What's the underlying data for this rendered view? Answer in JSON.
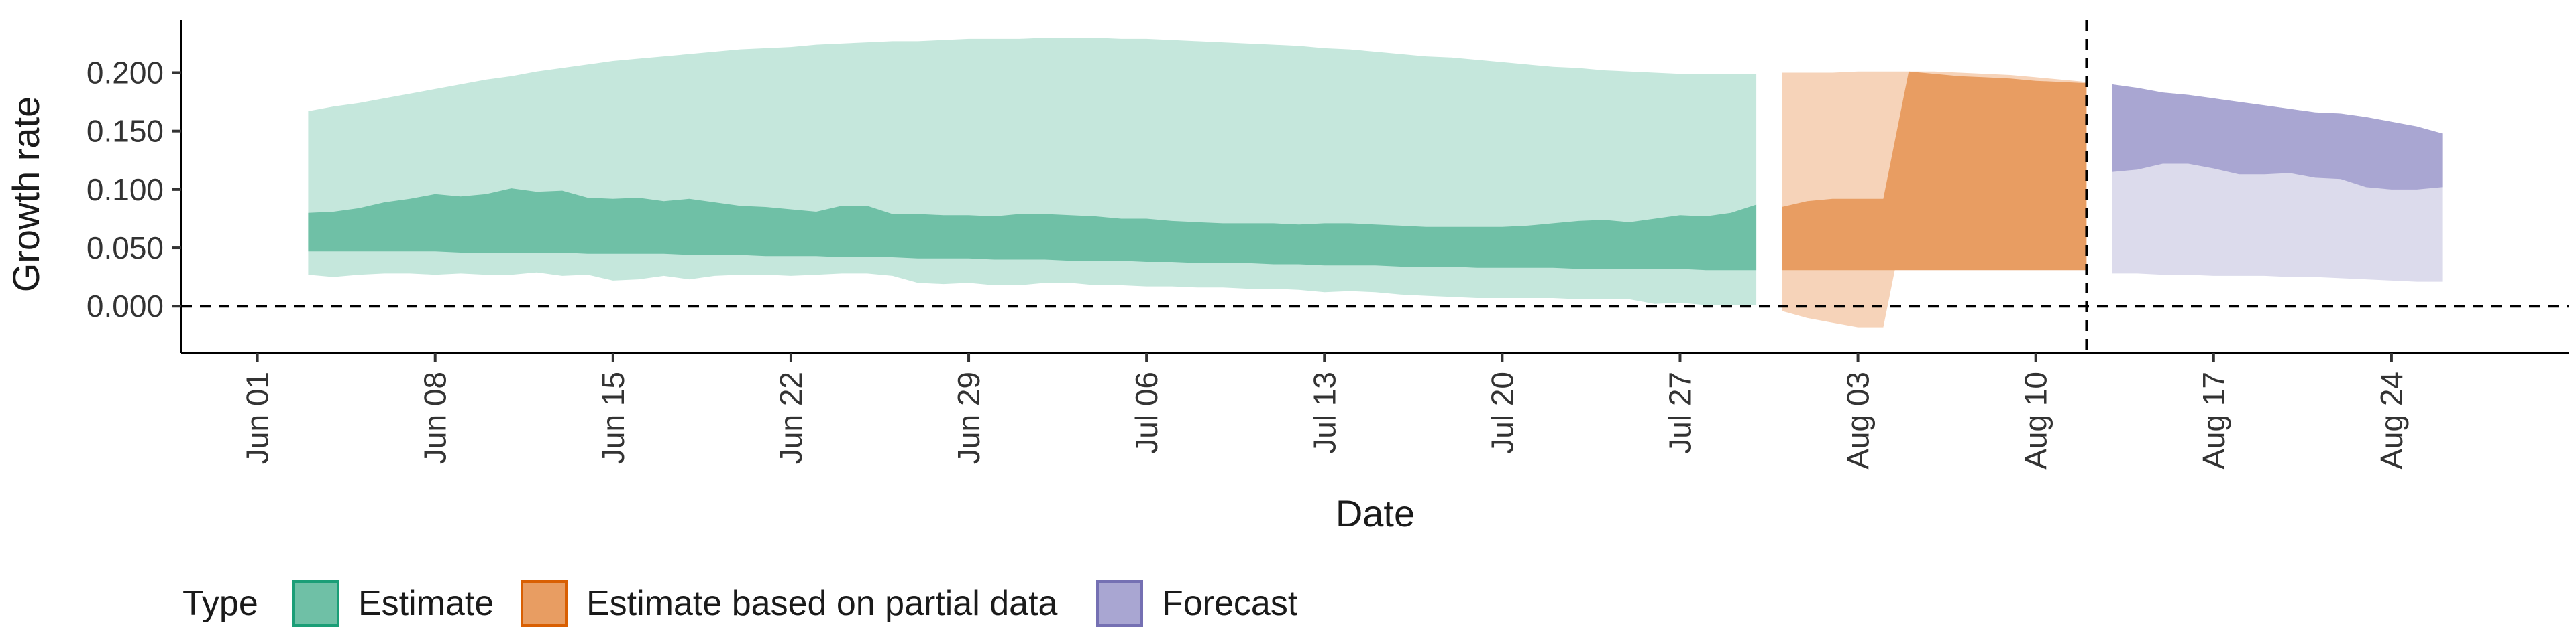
{
  "chart_data": {
    "type": "area",
    "title": "",
    "xlabel": "Date",
    "ylabel": "Growth rate",
    "x_range": [
      "2025-05-29",
      "2025-08-31"
    ],
    "ylim": [
      -0.04,
      0.245
    ],
    "x_ticks": [
      {
        "date": "2025-06-01",
        "label": "Jun 01"
      },
      {
        "date": "2025-06-08",
        "label": "Jun 08"
      },
      {
        "date": "2025-06-15",
        "label": "Jun 15"
      },
      {
        "date": "2025-06-22",
        "label": "Jun 22"
      },
      {
        "date": "2025-06-29",
        "label": "Jun 29"
      },
      {
        "date": "2025-07-06",
        "label": "Jul 06"
      },
      {
        "date": "2025-07-13",
        "label": "Jul 13"
      },
      {
        "date": "2025-07-20",
        "label": "Jul 20"
      },
      {
        "date": "2025-07-27",
        "label": "Jul 27"
      },
      {
        "date": "2025-08-03",
        "label": "Aug 03"
      },
      {
        "date": "2025-08-10",
        "label": "Aug 10"
      },
      {
        "date": "2025-08-17",
        "label": "Aug 17"
      },
      {
        "date": "2025-08-24",
        "label": "Aug 24"
      }
    ],
    "y_ticks": [
      {
        "value": 0.0,
        "label": "0.000"
      },
      {
        "value": 0.05,
        "label": "0.050"
      },
      {
        "value": 0.1,
        "label": "0.100"
      },
      {
        "value": 0.15,
        "label": "0.150"
      },
      {
        "value": 0.2,
        "label": "0.200"
      }
    ],
    "grid": false,
    "reference_lines": [
      {
        "axis": "y",
        "value": 0.0,
        "style": "dashed"
      },
      {
        "axis": "x",
        "value": "2025-08-12",
        "style": "dashed"
      }
    ],
    "legend": {
      "title": "Type",
      "position": "bottom-left",
      "entries": [
        {
          "label": "Estimate",
          "fill": "#6fc0a6",
          "stroke": "#1b9e77"
        },
        {
          "label": "Estimate based on partial data",
          "fill": "#e89d62",
          "stroke": "#d95f02"
        },
        {
          "label": "Forecast",
          "fill": "#a9a6d2",
          "stroke": "#7570b3"
        }
      ]
    },
    "series": [
      {
        "name": "Estimate",
        "color_outer": "#c5e7dc",
        "color_inner": "#6fc0a6",
        "x": [
          "2025-06-03",
          "2025-06-04",
          "2025-06-05",
          "2025-06-06",
          "2025-06-07",
          "2025-06-08",
          "2025-06-09",
          "2025-06-10",
          "2025-06-11",
          "2025-06-12",
          "2025-06-13",
          "2025-06-14",
          "2025-06-15",
          "2025-06-16",
          "2025-06-17",
          "2025-06-18",
          "2025-06-19",
          "2025-06-20",
          "2025-06-21",
          "2025-06-22",
          "2025-06-23",
          "2025-06-24",
          "2025-06-25",
          "2025-06-26",
          "2025-06-27",
          "2025-06-28",
          "2025-06-29",
          "2025-06-30",
          "2025-07-01",
          "2025-07-02",
          "2025-07-03",
          "2025-07-04",
          "2025-07-05",
          "2025-07-06",
          "2025-07-07",
          "2025-07-08",
          "2025-07-09",
          "2025-07-10",
          "2025-07-11",
          "2025-07-12",
          "2025-07-13",
          "2025-07-14",
          "2025-07-15",
          "2025-07-16",
          "2025-07-17",
          "2025-07-18",
          "2025-07-19",
          "2025-07-20",
          "2025-07-21",
          "2025-07-22",
          "2025-07-23",
          "2025-07-24",
          "2025-07-25",
          "2025-07-26",
          "2025-07-27",
          "2025-07-28",
          "2025-07-29",
          "2025-07-30"
        ],
        "outer_upper": [
          0.167,
          0.171,
          0.174,
          0.178,
          0.182,
          0.186,
          0.19,
          0.194,
          0.197,
          0.201,
          0.204,
          0.207,
          0.21,
          0.212,
          0.214,
          0.216,
          0.218,
          0.22,
          0.221,
          0.222,
          0.224,
          0.225,
          0.226,
          0.227,
          0.227,
          0.228,
          0.229,
          0.229,
          0.229,
          0.23,
          0.23,
          0.23,
          0.229,
          0.229,
          0.228,
          0.227,
          0.226,
          0.225,
          0.224,
          0.223,
          0.221,
          0.22,
          0.218,
          0.216,
          0.214,
          0.213,
          0.211,
          0.209,
          0.207,
          0.205,
          0.204,
          0.202,
          0.201,
          0.2,
          0.199,
          0.199,
          0.199,
          0.199
        ],
        "inner_upper": [
          0.08,
          0.081,
          0.084,
          0.089,
          0.092,
          0.096,
          0.094,
          0.096,
          0.101,
          0.098,
          0.099,
          0.093,
          0.092,
          0.093,
          0.09,
          0.092,
          0.089,
          0.086,
          0.085,
          0.083,
          0.081,
          0.086,
          0.086,
          0.079,
          0.079,
          0.078,
          0.078,
          0.077,
          0.079,
          0.079,
          0.078,
          0.077,
          0.075,
          0.075,
          0.073,
          0.072,
          0.071,
          0.071,
          0.071,
          0.07,
          0.071,
          0.071,
          0.07,
          0.069,
          0.068,
          0.068,
          0.068,
          0.068,
          0.069,
          0.071,
          0.073,
          0.074,
          0.072,
          0.075,
          0.078,
          0.077,
          0.08,
          0.087
        ],
        "inner_lower": [
          0.047,
          0.047,
          0.047,
          0.047,
          0.047,
          0.047,
          0.046,
          0.046,
          0.046,
          0.046,
          0.046,
          0.045,
          0.045,
          0.045,
          0.045,
          0.044,
          0.044,
          0.044,
          0.043,
          0.043,
          0.043,
          0.042,
          0.042,
          0.042,
          0.041,
          0.041,
          0.041,
          0.04,
          0.04,
          0.04,
          0.039,
          0.039,
          0.039,
          0.038,
          0.038,
          0.037,
          0.037,
          0.037,
          0.036,
          0.036,
          0.035,
          0.035,
          0.035,
          0.034,
          0.034,
          0.034,
          0.033,
          0.033,
          0.033,
          0.033,
          0.032,
          0.032,
          0.032,
          0.032,
          0.032,
          0.031,
          0.031,
          0.031
        ],
        "outer_lower": [
          0.027,
          0.025,
          0.027,
          0.028,
          0.028,
          0.027,
          0.028,
          0.027,
          0.027,
          0.029,
          0.026,
          0.027,
          0.022,
          0.023,
          0.026,
          0.023,
          0.026,
          0.027,
          0.027,
          0.026,
          0.027,
          0.028,
          0.028,
          0.026,
          0.02,
          0.019,
          0.02,
          0.018,
          0.018,
          0.02,
          0.02,
          0.018,
          0.018,
          0.017,
          0.017,
          0.016,
          0.016,
          0.015,
          0.015,
          0.014,
          0.012,
          0.013,
          0.012,
          0.01,
          0.009,
          0.008,
          0.007,
          0.007,
          0.007,
          0.007,
          0.006,
          0.006,
          0.006,
          0.002,
          0.003,
          0.001,
          0.001,
          0.001
        ]
      },
      {
        "name": "Estimate based on partial data",
        "color_outer": "#f6d3b9",
        "color_inner": "#e89d62",
        "x": [
          "2025-07-31",
          "2025-08-01",
          "2025-08-02",
          "2025-08-03",
          "2025-08-04",
          "2025-08-05",
          "2025-08-06",
          "2025-08-07",
          "2025-08-08",
          "2025-08-09",
          "2025-08-10",
          "2025-08-11",
          "2025-08-12"
        ],
        "outer_upper": [
          0.2,
          0.2,
          0.2,
          0.201,
          0.201,
          0.201,
          0.201,
          0.2,
          0.199,
          0.198,
          0.196,
          0.194,
          0.192
        ],
        "inner_upper": [
          0.085,
          0.09,
          0.092,
          0.092,
          0.092,
          0.201,
          0.199,
          0.197,
          0.196,
          0.195,
          0.193,
          0.192,
          0.191
        ],
        "inner_lower": [
          0.031,
          0.031,
          0.031,
          0.031,
          0.031,
          0.031,
          0.031,
          0.031,
          0.031,
          0.031,
          0.031,
          0.031,
          0.031
        ],
        "outer_lower": [
          -0.004,
          -0.01,
          -0.014,
          -0.018,
          -0.018,
          0.09,
          0.094,
          0.096,
          0.1,
          0.102,
          0.104,
          0.108,
          0.115
        ]
      },
      {
        "name": "Forecast",
        "color_outer": "#dcdbec",
        "color_inner": "#a9a6d2",
        "x": [
          "2025-08-13",
          "2025-08-14",
          "2025-08-15",
          "2025-08-16",
          "2025-08-17",
          "2025-08-18",
          "2025-08-19",
          "2025-08-20",
          "2025-08-21",
          "2025-08-22",
          "2025-08-23",
          "2025-08-24",
          "2025-08-25",
          "2025-08-26"
        ],
        "outer_upper": [
          0.19,
          0.187,
          0.183,
          0.181,
          0.178,
          0.175,
          0.172,
          0.169,
          0.166,
          0.165,
          0.162,
          0.158,
          0.154,
          0.148
        ],
        "inner_upper": [
          0.19,
          0.187,
          0.183,
          0.181,
          0.178,
          0.175,
          0.172,
          0.169,
          0.166,
          0.165,
          0.162,
          0.158,
          0.154,
          0.148
        ],
        "inner_lower": [
          0.115,
          0.117,
          0.122,
          0.122,
          0.118,
          0.113,
          0.113,
          0.114,
          0.11,
          0.109,
          0.102,
          0.1,
          0.1,
          0.102
        ],
        "outer_lower": [
          0.028,
          0.028,
          0.027,
          0.027,
          0.026,
          0.026,
          0.026,
          0.025,
          0.025,
          0.024,
          0.023,
          0.022,
          0.021,
          0.021
        ]
      }
    ]
  }
}
